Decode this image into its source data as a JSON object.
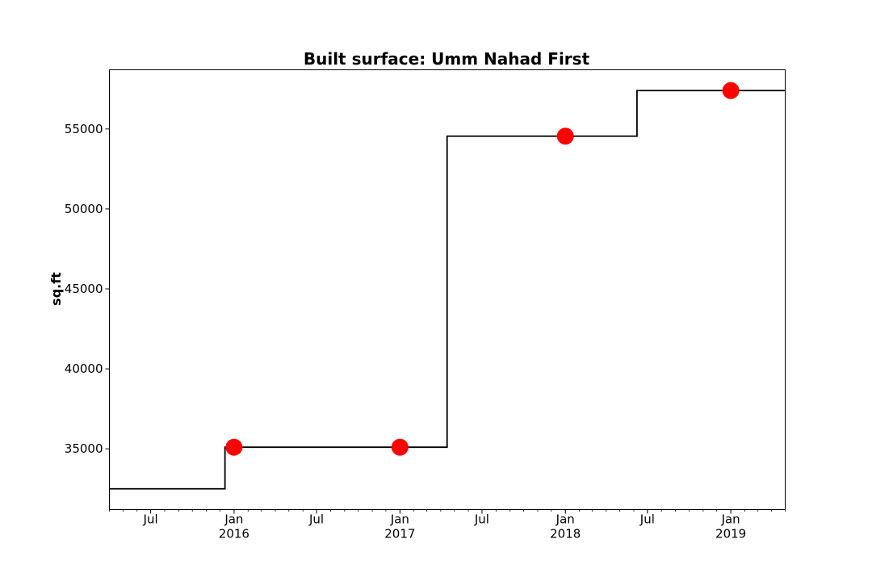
{
  "chart_data": {
    "type": "line",
    "title": "Built surface: Umm Nahad First",
    "xlabel": "",
    "ylabel": "sq.ft",
    "x_axis": {
      "type": "date",
      "range": [
        "2015-04-01",
        "2019-05-01"
      ],
      "major_ticks": [
        {
          "date": "2015-07-01",
          "label": "Jul",
          "sublabel": ""
        },
        {
          "date": "2016-01-01",
          "label": "Jan",
          "sublabel": "2016"
        },
        {
          "date": "2016-07-01",
          "label": "Jul",
          "sublabel": ""
        },
        {
          "date": "2017-01-01",
          "label": "Jan",
          "sublabel": "2017"
        },
        {
          "date": "2017-07-01",
          "label": "Jul",
          "sublabel": ""
        },
        {
          "date": "2018-01-01",
          "label": "Jan",
          "sublabel": "2018"
        },
        {
          "date": "2018-07-01",
          "label": "Jul",
          "sublabel": ""
        },
        {
          "date": "2019-01-01",
          "label": "Jan",
          "sublabel": "2019"
        }
      ],
      "minor_ticks": "monthly"
    },
    "y_axis": {
      "range": [
        31200,
        58700
      ],
      "ticks": [
        35000,
        40000,
        45000,
        50000,
        55000
      ]
    },
    "grid": false,
    "legend": "none",
    "series": [
      {
        "kind": "step",
        "color": "#000000",
        "points": [
          {
            "x": "2015-04-01",
            "y": 32500
          },
          {
            "x": "2015-12-12",
            "y": 32500
          },
          {
            "x": "2015-12-12",
            "y": 35100
          },
          {
            "x": "2017-04-15",
            "y": 35100
          },
          {
            "x": "2017-04-15",
            "y": 54550
          },
          {
            "x": "2018-06-08",
            "y": 54550
          },
          {
            "x": "2018-06-08",
            "y": 57400
          },
          {
            "x": "2019-05-01",
            "y": 57400
          }
        ]
      },
      {
        "kind": "scatter",
        "color": "#ff0000",
        "points": [
          {
            "x": "2016-01-01",
            "y": 35100
          },
          {
            "x": "2017-01-01",
            "y": 35100
          },
          {
            "x": "2018-01-01",
            "y": 54550
          },
          {
            "x": "2019-01-01",
            "y": 57400
          }
        ]
      }
    ]
  }
}
